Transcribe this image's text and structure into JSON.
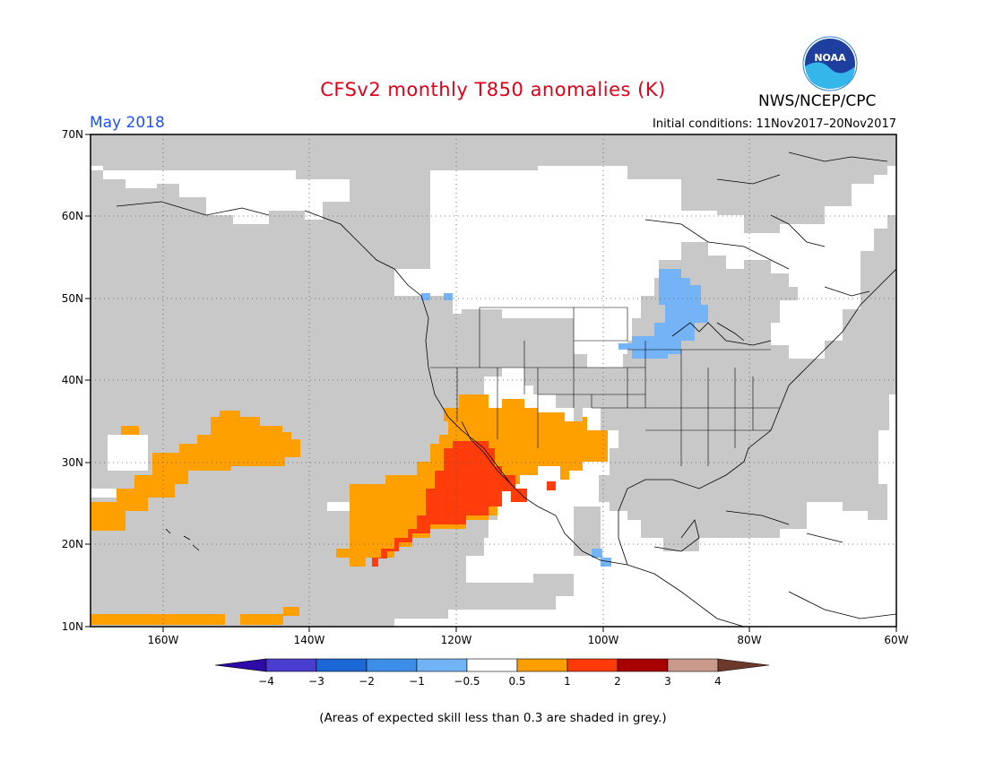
{
  "header": {
    "title": "CFSv2 monthly T850 anomalies (K)",
    "agency": "NWS/NCEP/CPC",
    "logo_text": "NOAA",
    "valid_month": "May 2018",
    "initial_conditions": "Initial conditions: 11Nov2017–20Nov2017"
  },
  "map": {
    "lon_labels": [
      "160W",
      "140W",
      "120W",
      "100W",
      "80W",
      "60W"
    ],
    "lat_labels": [
      "70N",
      "60N",
      "50N",
      "40N",
      "30N",
      "20N",
      "10N"
    ],
    "skill_mask_color": "#c8c8c8",
    "ocean_land_background": "#ffffff"
  },
  "legend": {
    "ticks": [
      "−4",
      "−3",
      "−2",
      "−1",
      "−0.5",
      "0.5",
      "1",
      "2",
      "3",
      "4"
    ],
    "colors": [
      "#2e0aa8",
      "#4a3ed1",
      "#1b67d6",
      "#3d8ee8",
      "#72b3f5",
      "#ffffff",
      "#ff9e00",
      "#ff3a0a",
      "#a80000",
      "#c99a8c",
      "#6b3a2a"
    ]
  },
  "footer": {
    "note": "(Areas of expected skill less than 0.3 are shaded in grey.)"
  }
}
